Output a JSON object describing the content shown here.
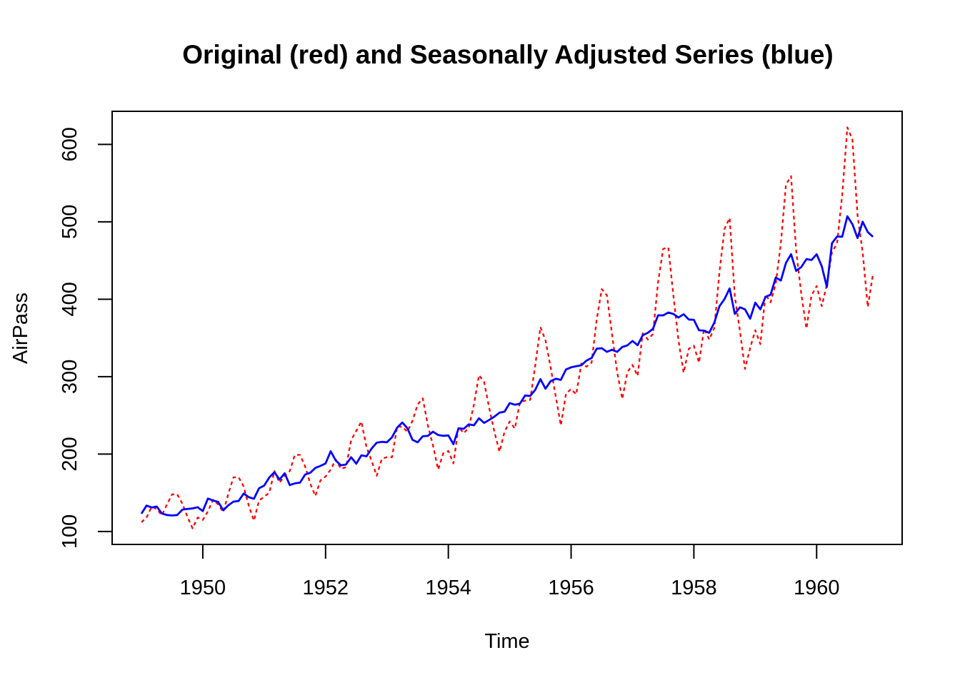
{
  "chart_data": {
    "type": "line",
    "title": "Original (red) and Seasonally Adjusted Series (blue)",
    "xlabel": "Time",
    "ylabel": "AirPass",
    "grid": false,
    "legend": "none (colors named in title)",
    "xlim": [
      1948.523,
      1961.393
    ],
    "ylim": [
      83.3,
      642.7
    ],
    "xticks": [
      1950,
      1952,
      1954,
      1956,
      1958,
      1960
    ],
    "yticks": [
      100,
      200,
      300,
      400,
      500,
      600
    ],
    "x_start": 1949.0,
    "x_step": 0.0833333,
    "frame_color": "#000000",
    "series": [
      {
        "name": "Original",
        "color": "#FF0000",
        "style": "dashed",
        "values": [
          112,
          118,
          132,
          129,
          121,
          135,
          148,
          148,
          136,
          119,
          104,
          118,
          115,
          126,
          141,
          135,
          125,
          149,
          170,
          170,
          158,
          133,
          114,
          140,
          145,
          150,
          178,
          163,
          172,
          178,
          199,
          199,
          184,
          162,
          146,
          166,
          171,
          180,
          193,
          181,
          183,
          218,
          230,
          242,
          209,
          191,
          172,
          194,
          196,
          196,
          236,
          235,
          229,
          243,
          264,
          272,
          237,
          211,
          180,
          201,
          204,
          188,
          235,
          227,
          234,
          264,
          302,
          293,
          259,
          229,
          203,
          229,
          242,
          233,
          267,
          269,
          270,
          315,
          364,
          347,
          312,
          274,
          237,
          278,
          284,
          277,
          317,
          313,
          318,
          374,
          413,
          405,
          355,
          306,
          271,
          306,
          315,
          301,
          356,
          348,
          355,
          422,
          465,
          467,
          404,
          347,
          305,
          336,
          340,
          318,
          362,
          348,
          363,
          435,
          491,
          505,
          404,
          359,
          310,
          337,
          360,
          342,
          406,
          396,
          420,
          472,
          548,
          559,
          463,
          407,
          362,
          405,
          417,
          391,
          419,
          461,
          472,
          535,
          622,
          606,
          508,
          461,
          390,
          432
        ]
      },
      {
        "name": "Seasonally Adjusted",
        "color": "#0000FF",
        "style": "solid",
        "values": [
          123.0,
          133.5,
          131.0,
          132.2,
          123.3,
          121.3,
          120.7,
          121.3,
          128.2,
          129.1,
          129.8,
          131.3,
          126.3,
          142.6,
          140.0,
          138.3,
          127.4,
          133.9,
          138.6,
          139.4,
          149.0,
          144.3,
          142.3,
          155.8,
          159.3,
          169.8,
          176.7,
          167.0,
          175.3,
          160.0,
          162.2,
          163.1,
          173.5,
          175.8,
          182.2,
          184.7,
          187.9,
          203.7,
          191.6,
          185.5,
          186.5,
          195.9,
          187.5,
          198.4,
          197.1,
          207.2,
          214.7,
          215.8,
          215.3,
          221.8,
          234.3,
          240.8,
          233.3,
          218.4,
          215.2,
          223.0,
          223.5,
          228.9,
          224.7,
          223.6,
          224.1,
          212.8,
          233.3,
          232.6,
          238.4,
          237.2,
          246.2,
          240.2,
          244.2,
          248.4,
          253.4,
          254.8,
          265.9,
          263.7,
          265.0,
          275.6,
          275.1,
          283.1,
          296.8,
          284.4,
          294.2,
          297.3,
          295.8,
          309.3,
          312.0,
          313.5,
          314.7,
          320.7,
          324.0,
          336.1,
          336.7,
          332.0,
          334.7,
          332.0,
          338.3,
          340.4,
          346.1,
          340.6,
          353.4,
          356.6,
          361.7,
          379.2,
          379.1,
          382.8,
          381.0,
          376.4,
          380.7,
          373.8,
          373.5,
          359.9,
          359.4,
          356.6,
          369.9,
          390.9,
          400.3,
          414.0,
          381.0,
          389.5,
          386.9,
          374.9,
          395.5,
          387.0,
          403.0,
          405.8,
          428.0,
          424.2,
          446.8,
          458.2,
          436.6,
          441.5,
          451.8,
          450.6,
          458.1,
          442.5,
          415.9,
          472.4,
          481.0,
          480.8,
          507.1,
          496.8,
          479.0,
          500.1,
          486.8,
          480.6
        ]
      }
    ]
  }
}
